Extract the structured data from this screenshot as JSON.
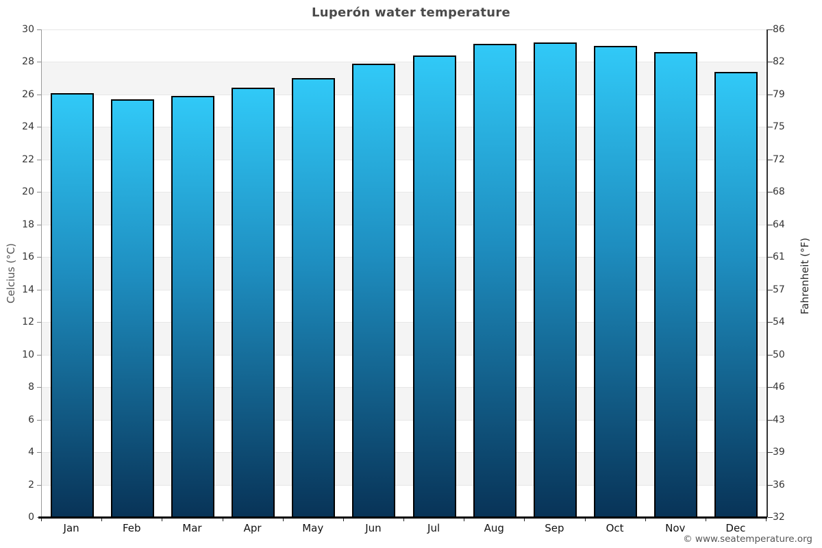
{
  "chart_data": {
    "type": "bar",
    "title": "Luperón water temperature",
    "categories": [
      "Jan",
      "Feb",
      "Mar",
      "Apr",
      "May",
      "Jun",
      "Jul",
      "Aug",
      "Sep",
      "Oct",
      "Nov",
      "Dec"
    ],
    "values": [
      26.1,
      25.7,
      25.9,
      26.4,
      27.0,
      27.9,
      28.4,
      29.1,
      29.2,
      29.0,
      28.6,
      27.4
    ],
    "ylabel_left": "Celcius (°C)",
    "ylabel_right": "Fahrenheit (°F)",
    "ylim": [
      0,
      30
    ],
    "yticks_celsius": [
      30,
      28,
      26,
      24,
      22,
      20,
      18,
      16,
      14,
      12,
      10,
      8,
      6,
      4,
      2,
      0
    ],
    "yticks_fahrenheit": [
      86,
      82,
      79,
      75,
      72,
      68,
      64,
      61,
      57,
      54,
      50,
      46,
      43,
      39,
      36,
      32
    ],
    "grid": "alternating-horizontal-bands",
    "legend": "none",
    "colors": {
      "bar_gradient_top": "#31c9f7",
      "bar_gradient_mid": "#1e8ec0",
      "bar_gradient_bottom": "#083357",
      "bar_border": "#000000",
      "band_gray": "#f4f4f4",
      "band_white": "#ffffff",
      "gridline": "#e7e7e7"
    },
    "attribution": "© www.seatemperature.org"
  }
}
